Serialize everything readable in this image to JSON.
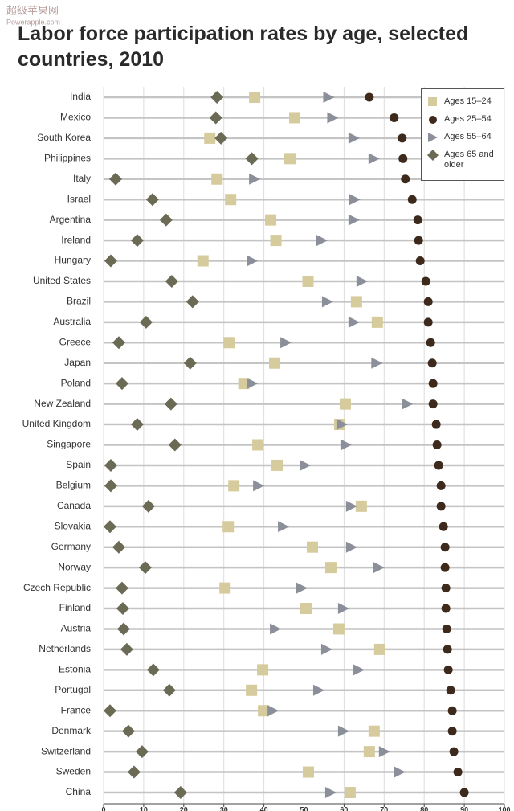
{
  "watermark": {
    "name": "超级苹果网",
    "url": "Powerapple.com"
  },
  "chart_data": {
    "type": "dot",
    "title": "Labor force participation rates by age, selected countries, 2010",
    "categories": [
      "India",
      "Mexico",
      "South Korea",
      "Philippines",
      "Italy",
      "Israel",
      "Argentina",
      "Ireland",
      "Hungary",
      "United States",
      "Brazil",
      "Australia",
      "Greece",
      "Japan",
      "Poland",
      "New Zealand",
      "United Kingdom",
      "Singapore",
      "Spain",
      "Belgium",
      "Canada",
      "Slovakia",
      "Germany",
      "Norway",
      "Czech Republic",
      "Finland",
      "Austria",
      "Netherlands",
      "Estonia",
      "Portugal",
      "France",
      "Denmark",
      "Switzerland",
      "Sweden",
      "China"
    ],
    "series": [
      {
        "name": "Ages 15–24",
        "color": "#d6cb9c",
        "marker": "square",
        "values": [
          37.7,
          47.7,
          26.5,
          46.5,
          28.3,
          31.7,
          41.7,
          43,
          24.8,
          51,
          63.1,
          68.3,
          31.3,
          42.7,
          35,
          60.3,
          58.9,
          38.5,
          43.3,
          32.5,
          64.3,
          31.1,
          52.1,
          56.7,
          30.3,
          50.5,
          58.7,
          68.9,
          39.7,
          36.9,
          39.9,
          67.5,
          66.3,
          51.1,
          61.5
        ]
      },
      {
        "name": "Ages 25–54",
        "color": "#3d2a1d",
        "marker": "circle",
        "values": [
          66.3,
          72.5,
          74.5,
          74.7,
          75.3,
          77,
          78.4,
          78.6,
          79,
          80.4,
          81,
          81,
          81.6,
          82,
          82.2,
          82.2,
          83,
          83.2,
          83.6,
          84.2,
          84.2,
          84.8,
          85.2,
          85.2,
          85.4,
          85.4,
          85.6,
          85.8,
          86,
          86.6,
          87,
          87,
          87.4,
          88.4,
          90
        ]
      },
      {
        "name": "Ages 55–64",
        "color": "#8b8f99",
        "marker": "triangle",
        "values": [
          56,
          57,
          62.3,
          67.3,
          37.5,
          62.5,
          62.3,
          54.3,
          36.9,
          64.3,
          55.7,
          62.3,
          45.3,
          68,
          36.9,
          75.6,
          59.3,
          60.3,
          50.1,
          38.5,
          61.7,
          44.7,
          61.7,
          68.5,
          49.3,
          59.7,
          42.7,
          55.5,
          63.5,
          53.5,
          42.1,
          59.7,
          69.9,
          73.7,
          56.5
        ]
      },
      {
        "name": "Ages 65 and older",
        "color": "#6a6a55",
        "marker": "diamond",
        "values": [
          28.3,
          28,
          29.3,
          37,
          3,
          12.2,
          15.6,
          8.4,
          1.8,
          17,
          22.2,
          10.6,
          3.8,
          21.6,
          4.6,
          16.8,
          8.4,
          17.8,
          1.8,
          1.8,
          11.2,
          1.6,
          3.8,
          10.4,
          4.6,
          4.8,
          5,
          5.8,
          12.4,
          16.4,
          1.6,
          6.2,
          9.6,
          7.6,
          19.2
        ]
      }
    ],
    "xlim": [
      0,
      100
    ],
    "xticks": [
      0,
      10,
      20,
      30,
      40,
      50,
      60,
      70,
      80,
      90,
      100
    ],
    "grid": true,
    "legend": "top-right"
  }
}
